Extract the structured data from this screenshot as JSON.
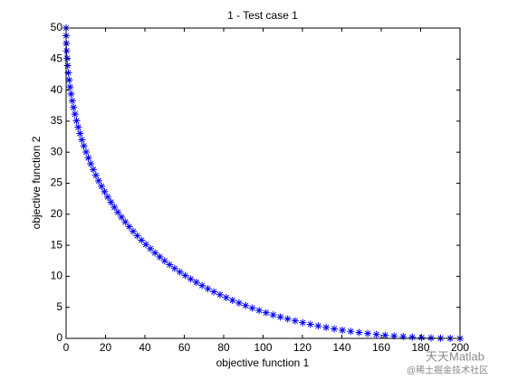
{
  "chart_data": {
    "type": "scatter",
    "title": "1 - Test case 1",
    "x_label": "objective function 1",
    "y_label": "objective function 2",
    "xlim": [
      0,
      200
    ],
    "ylim": [
      0,
      50
    ],
    "xticks": [
      0,
      20,
      40,
      60,
      80,
      100,
      120,
      140,
      160,
      180,
      200
    ],
    "yticks": [
      0,
      5,
      10,
      15,
      20,
      25,
      30,
      35,
      40,
      45,
      50
    ],
    "grid": false,
    "marker": "*",
    "series": [
      {
        "color": "#0000ff",
        "x": [
          0,
          0.03,
          0.13,
          0.28,
          0.5,
          0.78,
          1.13,
          1.53,
          2,
          2.53,
          3.13,
          3.78,
          4.5,
          5.28,
          6.13,
          7.03,
          8,
          9.03,
          10.13,
          11.28,
          12.5,
          13.78,
          15.13,
          16.53,
          18,
          19.53,
          21.13,
          22.78,
          24.5,
          26.28,
          28.13,
          30.03,
          32,
          34.03,
          36.13,
          38.28,
          40.5,
          42.78,
          45.13,
          47.53,
          50,
          52.53,
          55.13,
          57.78,
          60.5,
          63.28,
          66.13,
          69.03,
          72,
          75.03,
          78.13,
          81.28,
          84.5,
          87.78,
          91.13,
          94.53,
          98,
          101.53,
          105.13,
          108.78,
          112.5,
          116.28,
          120.13,
          124.03,
          128,
          132.03,
          136.13,
          140.28,
          144.5,
          148.78,
          153.13,
          157.53,
          162,
          166.53,
          171.13,
          175.78,
          180.5,
          185.28,
          190.13,
          195.03,
          200
        ],
        "values": [
          50,
          48.76,
          47.53,
          46.32,
          45.13,
          43.95,
          42.78,
          41.63,
          40.5,
          39.38,
          38.28,
          37.2,
          36.13,
          35.07,
          34.03,
          33.01,
          32,
          31.01,
          30.03,
          29.07,
          28.13,
          27.2,
          26.28,
          25.38,
          24.5,
          23.63,
          22.78,
          21.95,
          21.13,
          20.32,
          19.53,
          18.76,
          18,
          17.26,
          16.53,
          15.82,
          15.13,
          14.45,
          13.78,
          13.13,
          12.5,
          11.88,
          11.28,
          10.7,
          10.13,
          9.57,
          9.03,
          8.51,
          8,
          7.51,
          7.03,
          6.57,
          6.13,
          5.7,
          5.28,
          4.88,
          4.5,
          4.13,
          3.78,
          3.45,
          3.13,
          2.82,
          2.53,
          2.26,
          2,
          1.76,
          1.53,
          1.32,
          1.13,
          0.95,
          0.78,
          0.63,
          0.5,
          0.38,
          0.28,
          0.2,
          0.13,
          0.07,
          0.03,
          0.01,
          0
        ]
      }
    ]
  },
  "watermark": {
    "line1": "天天Matlab",
    "line2": "@稀土掘金技术社区"
  }
}
